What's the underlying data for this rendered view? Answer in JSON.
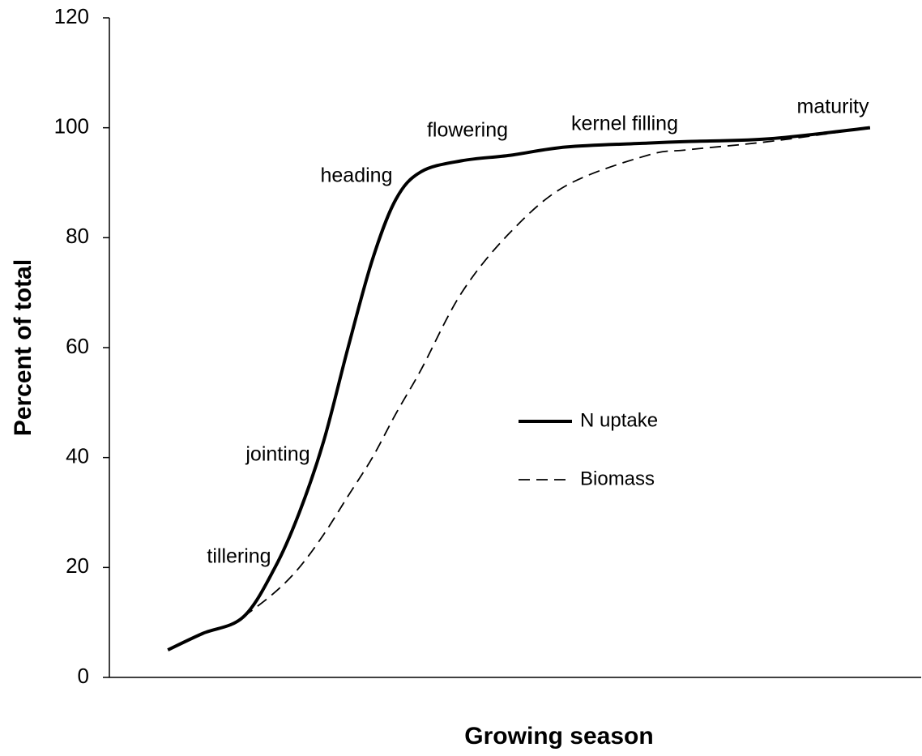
{
  "chart_data": {
    "type": "line",
    "xlabel": "Growing season",
    "ylabel": "Percent of total",
    "x": [
      7.2,
      11.5,
      16.5,
      20.4,
      23.4,
      26.4,
      29.4,
      32.4,
      35.3,
      38.4,
      43.4,
      49.4,
      56.3,
      66.3,
      71.3,
      81.3,
      93.7
    ],
    "series": [
      {
        "name": "N uptake",
        "color": "#000000",
        "style": "solid",
        "values": [
          5,
          8,
          11,
          20,
          30,
          43,
          60,
          76,
          87,
          92,
          94,
          95,
          96.5,
          97.2,
          97.5,
          98,
          100
        ]
      },
      {
        "name": "Biomass",
        "color": "#000000",
        "style": "dashed",
        "values": [
          null,
          null,
          11,
          15.5,
          20,
          26,
          33,
          40,
          48,
          56,
          70,
          81,
          89.5,
          95,
          96,
          97.5,
          100
        ]
      }
    ],
    "annotations": [
      "tillering",
      "jointing",
      "heading",
      "flowering",
      "kernel filling",
      "maturity"
    ],
    "xlim": [
      0,
      100
    ],
    "ylim": [
      0,
      120
    ],
    "yticks": [
      0,
      20,
      40,
      60,
      80,
      100,
      120
    ],
    "grid": false,
    "legend": "center-right"
  }
}
